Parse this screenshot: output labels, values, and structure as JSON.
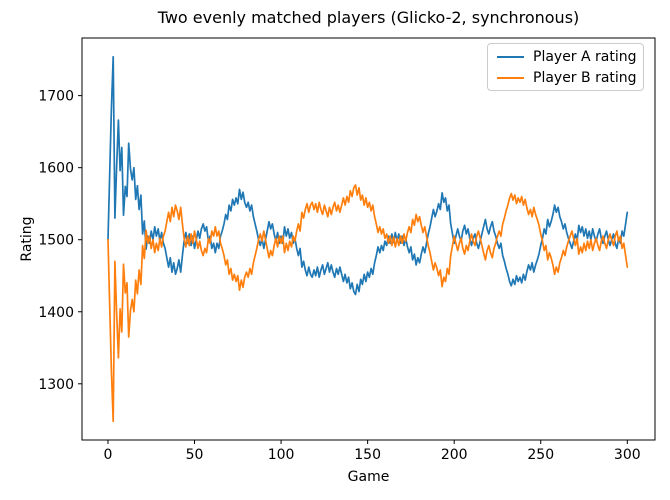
{
  "window": {
    "background": "#ffffff"
  },
  "chart_data": {
    "type": "line",
    "title": "Two evenly matched players (Glicko-2, synchronous)",
    "xlabel": "Game",
    "ylabel": "Rating",
    "xlim": [
      -15,
      316
    ],
    "ylim": [
      1222,
      1780
    ],
    "xticks": [
      0,
      50,
      100,
      150,
      200,
      250,
      300
    ],
    "yticks": [
      1300,
      1400,
      1500,
      1600,
      1700
    ],
    "grid": false,
    "legend": {
      "position": "upper-right",
      "border_color": "#cccccc",
      "background": "#ffffff"
    },
    "x_start": 0,
    "x_step": 1,
    "series": [
      {
        "name": "Player A rating",
        "color": "#1f77b4",
        "values": [
          1500,
          1592,
          1682,
          1754,
          1530,
          1600,
          1666,
          1596,
          1628,
          1534,
          1574,
          1560,
          1634,
          1598,
          1583,
          1600,
          1556,
          1575,
          1542,
          1562,
          1508,
          1526,
          1487,
          1505,
          1495,
          1512,
          1500,
          1518,
          1505,
          1515,
          1498,
          1510,
          1495,
          1488,
          1475,
          1462,
          1475,
          1455,
          1468,
          1452,
          1460,
          1472,
          1455,
          1478,
          1498,
          1510,
          1495,
          1508,
          1492,
          1505,
          1488,
          1500,
          1512,
          1502,
          1515,
          1522,
          1512,
          1518,
          1498,
          1505,
          1488,
          1495,
          1482,
          1495,
          1488,
          1505,
          1512,
          1522,
          1535,
          1528,
          1548,
          1540,
          1556,
          1548,
          1558,
          1550,
          1570,
          1556,
          1566,
          1552,
          1545,
          1552,
          1540,
          1548,
          1532,
          1522,
          1512,
          1500,
          1492,
          1502,
          1488,
          1500,
          1512,
          1525,
          1515,
          1522,
          1508,
          1498,
          1510,
          1495,
          1505,
          1495,
          1518,
          1505,
          1515,
          1502,
          1510,
          1495,
          1502,
          1488,
          1478,
          1488,
          1462,
          1470,
          1458,
          1450,
          1462,
          1452,
          1448,
          1458,
          1450,
          1462,
          1448,
          1458,
          1465,
          1452,
          1460,
          1468,
          1455,
          1465,
          1455,
          1448,
          1460,
          1452,
          1462,
          1452,
          1442,
          1452,
          1440,
          1448,
          1432,
          1440,
          1428,
          1424,
          1438,
          1428,
          1445,
          1438,
          1452,
          1442,
          1455,
          1448,
          1460,
          1452,
          1468,
          1478,
          1490,
          1482,
          1492,
          1485,
          1498,
          1492,
          1505,
          1495,
          1508,
          1496,
          1510,
          1498,
          1508,
          1495,
          1505,
          1492,
          1502,
          1490,
          1482,
          1490,
          1472,
          1480,
          1465,
          1475,
          1468,
          1480,
          1490,
          1482,
          1495,
          1508,
          1518,
          1530,
          1542,
          1532,
          1540,
          1550,
          1542,
          1565,
          1552,
          1558,
          1540,
          1548,
          1522,
          1508,
          1495,
          1505,
          1515,
          1505,
          1498,
          1512,
          1520,
          1508,
          1515,
          1502,
          1492,
          1502,
          1508,
          1495,
          1488,
          1498,
          1508,
          1518,
          1528,
          1515,
          1508,
          1518,
          1525,
          1512,
          1505,
          1495,
          1488,
          1495,
          1478,
          1470,
          1460,
          1452,
          1442,
          1436,
          1445,
          1438,
          1450,
          1442,
          1448,
          1440,
          1452,
          1444,
          1456,
          1465,
          1458,
          1468,
          1455,
          1465,
          1472,
          1480,
          1492,
          1502,
          1515,
          1508,
          1528,
          1518,
          1525,
          1535,
          1548,
          1538,
          1545,
          1532,
          1525,
          1515,
          1522,
          1510,
          1502,
          1495,
          1488,
          1498,
          1508,
          1498,
          1520,
          1510,
          1518,
          1505,
          1515,
          1502,
          1512,
          1500,
          1515,
          1505,
          1498,
          1508,
          1515,
          1502,
          1495,
          1505,
          1512,
          1500,
          1492,
          1500,
          1508,
          1495,
          1488,
          1502,
          1495,
          1512,
          1505,
          1522,
          1538
        ]
      },
      {
        "name": "Player B rating",
        "color": "#ff7f0e",
        "values": [
          1500,
          1408,
          1318,
          1248,
          1470,
          1400,
          1336,
          1404,
          1372,
          1466,
          1426,
          1440,
          1365,
          1402,
          1417,
          1400,
          1444,
          1425,
          1458,
          1438,
          1492,
          1474,
          1513,
          1495,
          1505,
          1488,
          1500,
          1482,
          1495,
          1485,
          1502,
          1490,
          1505,
          1512,
          1525,
          1538,
          1525,
          1545,
          1532,
          1548,
          1540,
          1528,
          1545,
          1522,
          1502,
          1490,
          1505,
          1492,
          1508,
          1495,
          1512,
          1500,
          1488,
          1498,
          1485,
          1478,
          1488,
          1482,
          1502,
          1495,
          1512,
          1505,
          1518,
          1505,
          1512,
          1495,
          1488,
          1478,
          1465,
          1472,
          1452,
          1460,
          1444,
          1452,
          1442,
          1450,
          1430,
          1444,
          1434,
          1448,
          1455,
          1448,
          1460,
          1452,
          1468,
          1478,
          1488,
          1500,
          1508,
          1498,
          1512,
          1500,
          1488,
          1475,
          1485,
          1478,
          1492,
          1502,
          1490,
          1505,
          1495,
          1505,
          1482,
          1495,
          1485,
          1498,
          1490,
          1505,
          1498,
          1512,
          1522,
          1512,
          1538,
          1530,
          1542,
          1550,
          1538,
          1548,
          1552,
          1542,
          1550,
          1538,
          1552,
          1542,
          1535,
          1548,
          1540,
          1532,
          1545,
          1535,
          1545,
          1552,
          1540,
          1548,
          1538,
          1548,
          1558,
          1548,
          1560,
          1552,
          1568,
          1560,
          1572,
          1576,
          1562,
          1572,
          1555,
          1562,
          1548,
          1558,
          1545,
          1552,
          1540,
          1548,
          1532,
          1522,
          1510,
          1518,
          1508,
          1515,
          1502,
          1508,
          1495,
          1505,
          1492,
          1504,
          1490,
          1502,
          1492,
          1505,
          1495,
          1508,
          1498,
          1510,
          1518,
          1510,
          1528,
          1520,
          1535,
          1525,
          1532,
          1520,
          1510,
          1518,
          1505,
          1492,
          1482,
          1470,
          1458,
          1468,
          1460,
          1450,
          1458,
          1435,
          1448,
          1442,
          1460,
          1452,
          1478,
          1492,
          1505,
          1495,
          1485,
          1495,
          1502,
          1488,
          1480,
          1492,
          1485,
          1498,
          1508,
          1498,
          1492,
          1505,
          1512,
          1502,
          1492,
          1482,
          1472,
          1485,
          1492,
          1482,
          1475,
          1488,
          1495,
          1505,
          1512,
          1505,
          1522,
          1530,
          1540,
          1548,
          1558,
          1564,
          1555,
          1562,
          1550,
          1558,
          1552,
          1560,
          1548,
          1556,
          1544,
          1535,
          1542,
          1532,
          1545,
          1535,
          1528,
          1520,
          1508,
          1498,
          1485,
          1492,
          1472,
          1482,
          1475,
          1465,
          1452,
          1462,
          1455,
          1468,
          1475,
          1485,
          1478,
          1490,
          1498,
          1505,
          1512,
          1502,
          1492,
          1502,
          1480,
          1490,
          1482,
          1495,
          1485,
          1498,
          1488,
          1500,
          1485,
          1495,
          1502,
          1492,
          1485,
          1498,
          1505,
          1495,
          1488,
          1500,
          1508,
          1500,
          1492,
          1505,
          1512,
          1498,
          1505,
          1488,
          1495,
          1478,
          1462
        ]
      }
    ]
  }
}
